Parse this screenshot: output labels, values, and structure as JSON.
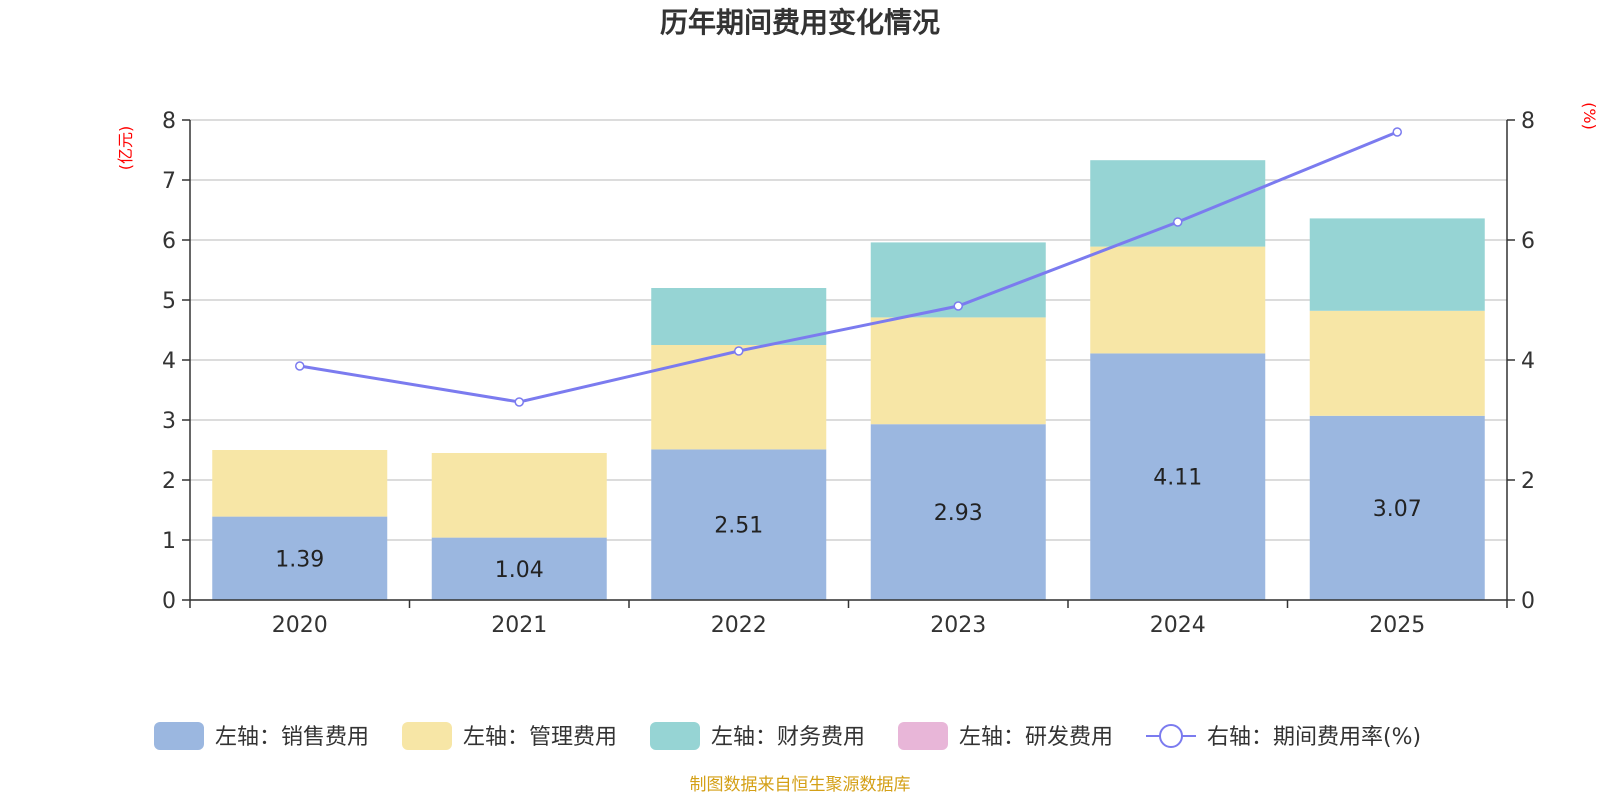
{
  "chart_data": {
    "type": "bar",
    "title": "历年期间费用变化情况",
    "categories": [
      "2020",
      "2021",
      "2022",
      "2023",
      "2024",
      "2025"
    ],
    "left_axis": {
      "unit": "(亿元)",
      "ylim": [
        0,
        8
      ],
      "ticks": [
        "0",
        "1",
        "2",
        "3",
        "4",
        "5",
        "6",
        "7",
        "8"
      ]
    },
    "right_axis": {
      "unit": "(%)",
      "ylim": [
        0,
        8
      ],
      "ticks": [
        "0",
        "2",
        "4",
        "6",
        "8"
      ]
    },
    "series": [
      {
        "name": "左轴：销售费用",
        "type": "bar",
        "axis": "left",
        "color": "#9bb7e0",
        "values": [
          1.39,
          1.04,
          2.51,
          2.93,
          4.11,
          3.07
        ],
        "labels": [
          "1.39",
          "1.04",
          "2.51",
          "2.93",
          "4.11",
          "3.07"
        ]
      },
      {
        "name": "左轴：管理费用",
        "type": "bar",
        "axis": "left",
        "color": "#f7e6a6",
        "values": [
          1.11,
          1.41,
          1.74,
          1.78,
          1.78,
          1.75
        ]
      },
      {
        "name": "左轴：财务费用",
        "type": "bar",
        "axis": "left",
        "color": "#96d4d4",
        "values": [
          0,
          0,
          0.95,
          1.25,
          1.44,
          1.54
        ]
      },
      {
        "name": "左轴：研发费用",
        "type": "bar",
        "axis": "left",
        "color": "#e8b6d8",
        "values": [
          0,
          0,
          0,
          0,
          0,
          0
        ]
      },
      {
        "name": "右轴：期间费用率(%)",
        "type": "line",
        "axis": "right",
        "color": "#7b7bef",
        "values": [
          3.9,
          3.3,
          4.15,
          4.9,
          6.3,
          7.8
        ]
      }
    ],
    "grid": true,
    "legend_position": "bottom"
  },
  "source_note": "制图数据来自恒生聚源数据库"
}
